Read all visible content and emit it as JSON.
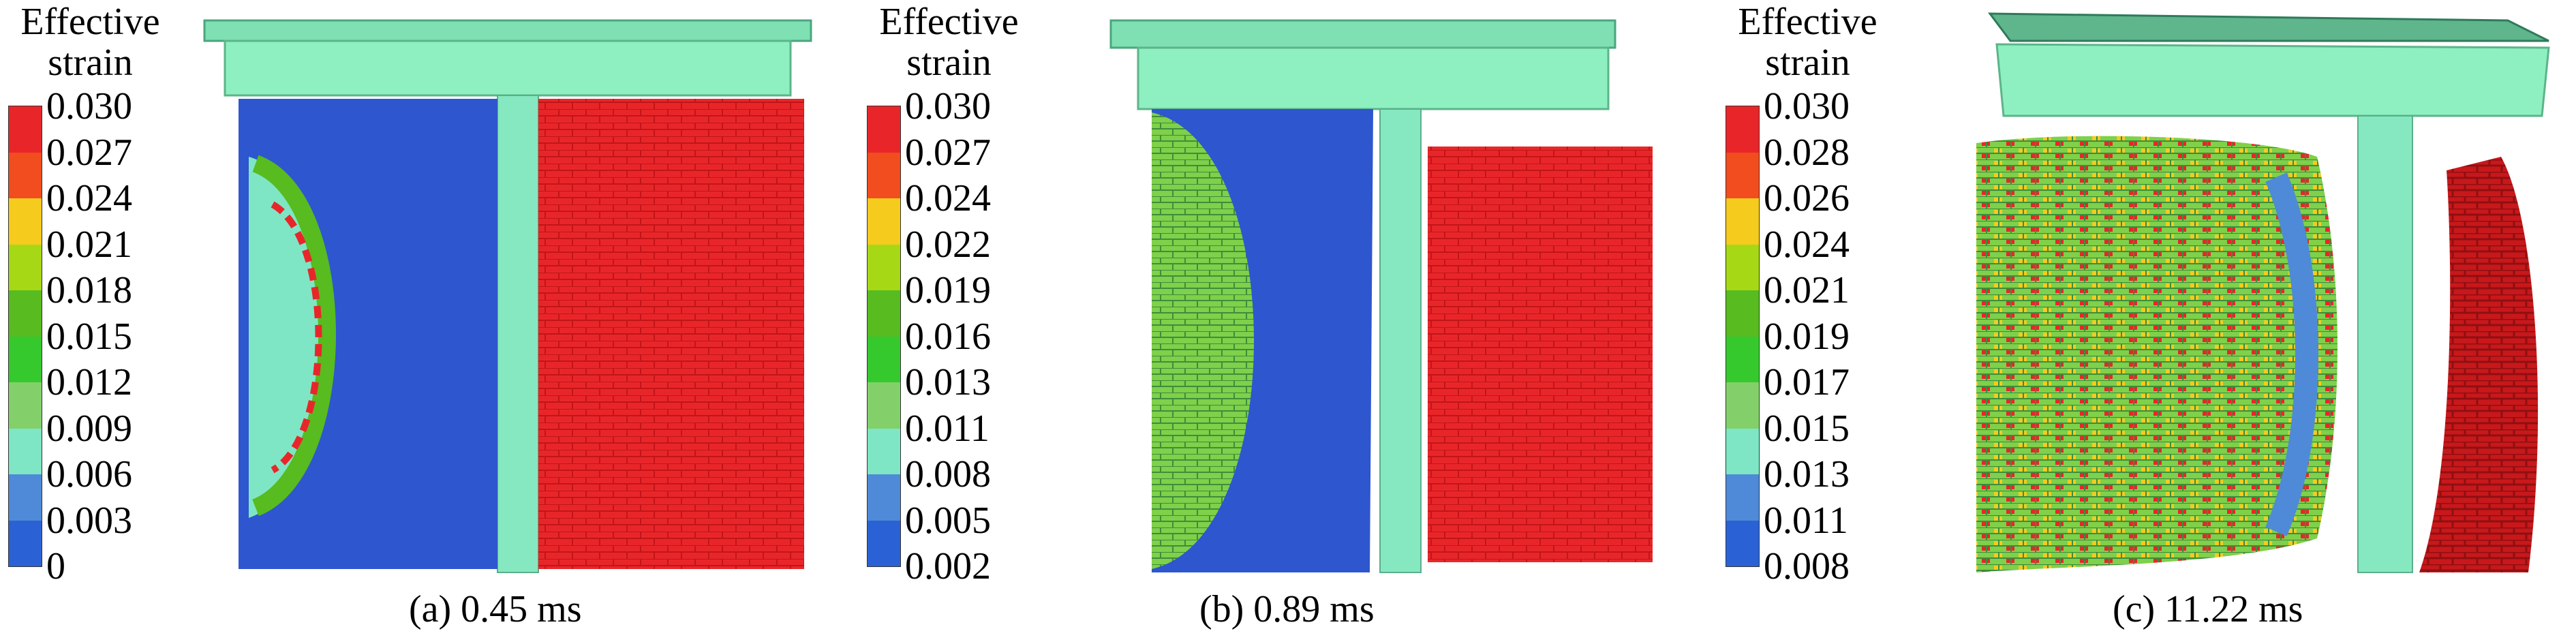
{
  "legend_colors": [
    "#e8262a",
    "#f24d1e",
    "#f5cb1e",
    "#a7d816",
    "#58bb1f",
    "#36c92e",
    "#83d06b",
    "#7ee6c4",
    "#4f8ad8",
    "#2a62d6"
  ],
  "panels": [
    {
      "id": "a",
      "legend_title": [
        "Effective",
        "strain"
      ],
      "ticks": [
        "0.030",
        "0.027",
        "0.024",
        "0.021",
        "0.018",
        "0.015",
        "0.012",
        "0.009",
        "0.006",
        "0.003",
        "0"
      ],
      "caption": "(a) 0.45 ms"
    },
    {
      "id": "b",
      "legend_title": [
        "Effective",
        "strain"
      ],
      "ticks": [
        "0.030",
        "0.027",
        "0.024",
        "0.022",
        "0.019",
        "0.016",
        "0.013",
        "0.011",
        "0.008",
        "0.005",
        "0.002"
      ],
      "caption": "(b) 0.89 ms"
    },
    {
      "id": "c",
      "legend_title": [
        "Effective",
        "strain"
      ],
      "ticks": [
        "0.030",
        "0.028",
        "0.026",
        "0.024",
        "0.021",
        "0.019",
        "0.017",
        "0.015",
        "0.013",
        "0.011",
        "0.008"
      ],
      "caption": "(c) 11.22 ms"
    }
  ]
}
